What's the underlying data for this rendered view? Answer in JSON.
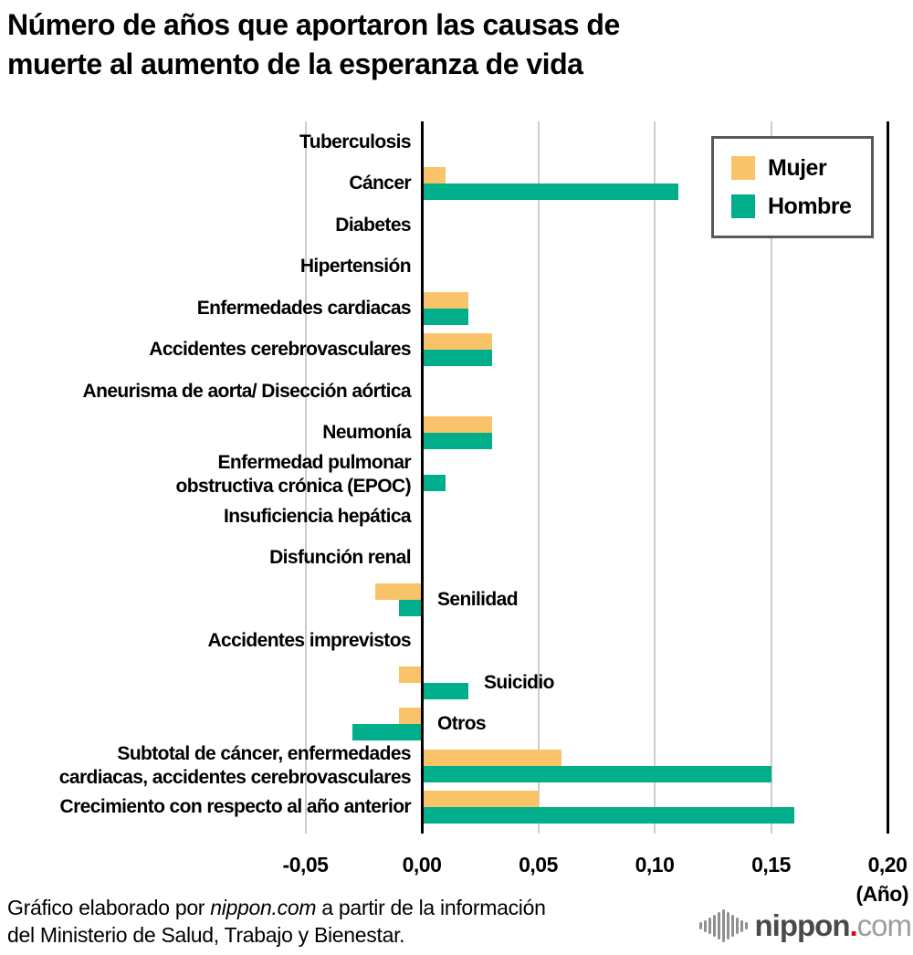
{
  "title": "Número de años que aportaron las causas de\nmuerte al aumento de la esperanza de vida",
  "legend": {
    "items": [
      {
        "label": "Mujer",
        "color": "#F9C369"
      },
      {
        "label": "Hombre",
        "color": "#00AE8C"
      }
    ]
  },
  "footer": {
    "line1_prefix": "Gráfico elaborado por ",
    "line1_source": "nippon.com",
    "line1_suffix": " a partir de la información",
    "line2": "del Ministerio de Salud, Trabajo y Bienestar."
  },
  "logo": {
    "name": "nippon",
    "dot": ".",
    "tld": "com"
  },
  "chart_data": {
    "type": "bar",
    "orientation": "horizontal",
    "title": "Número de años que aportaron las causas de muerte al aumento de la esperanza de vida",
    "xlabel": "(Año)",
    "xlim": [
      -0.06,
      0.202
    ],
    "grid": true,
    "legend_position": "top-right",
    "ticks": [
      {
        "value": -0.05,
        "label": "-0,05",
        "line": "gray"
      },
      {
        "value": 0,
        "label": "0,00",
        "line": "black"
      },
      {
        "value": 0.05,
        "label": "0,05",
        "line": "gray"
      },
      {
        "value": 0.1,
        "label": "0,10",
        "line": "gray"
      },
      {
        "value": 0.15,
        "label": "0,15",
        "line": "gray"
      },
      {
        "value": 0.2,
        "label": "0,20",
        "line": "black"
      }
    ],
    "categories": [
      {
        "label": "Tuberculosis",
        "side": "left"
      },
      {
        "label": "Cáncer",
        "side": "left"
      },
      {
        "label": "Diabetes",
        "side": "left"
      },
      {
        "label": "Hipertensión",
        "side": "left"
      },
      {
        "label": "Enfermedades cardiacas",
        "side": "left"
      },
      {
        "label": "Accidentes cerebrovasculares",
        "side": "left"
      },
      {
        "label": "Aneurisma de aorta/ Disección aórtica",
        "side": "left"
      },
      {
        "label": "Neumonía",
        "side": "left"
      },
      {
        "label": "Enfermedad pulmonar\nobstructiva crónica (EPOC)",
        "side": "left"
      },
      {
        "label": "Insuficiencia hepática",
        "side": "left"
      },
      {
        "label": "Disfunción renal",
        "side": "left"
      },
      {
        "label": "Senilidad",
        "side": "right"
      },
      {
        "label": "Accidentes imprevistos",
        "side": "left"
      },
      {
        "label": "Suicidio",
        "side": "right"
      },
      {
        "label": "Otros",
        "side": "right"
      },
      {
        "label": "Subtotal de cáncer, enfermedades\ncardiacas, accidentes cerebrovasculares",
        "side": "left"
      },
      {
        "label": "Crecimiento con respecto al año anterior",
        "side": "left"
      }
    ],
    "series": [
      {
        "name": "Mujer",
        "color": "#F9C369",
        "values": [
          0,
          0.01,
          0,
          0,
          0.02,
          0.03,
          0,
          0.03,
          0,
          0,
          0,
          -0.02,
          0,
          -0.01,
          -0.01,
          0.06,
          0.05
        ]
      },
      {
        "name": "Hombre",
        "color": "#00AE8C",
        "values": [
          0,
          0.11,
          0,
          0,
          0.02,
          0.03,
          0,
          0.03,
          0.01,
          0,
          0,
          -0.01,
          0,
          0.02,
          -0.03,
          0.15,
          0.16
        ]
      }
    ]
  }
}
